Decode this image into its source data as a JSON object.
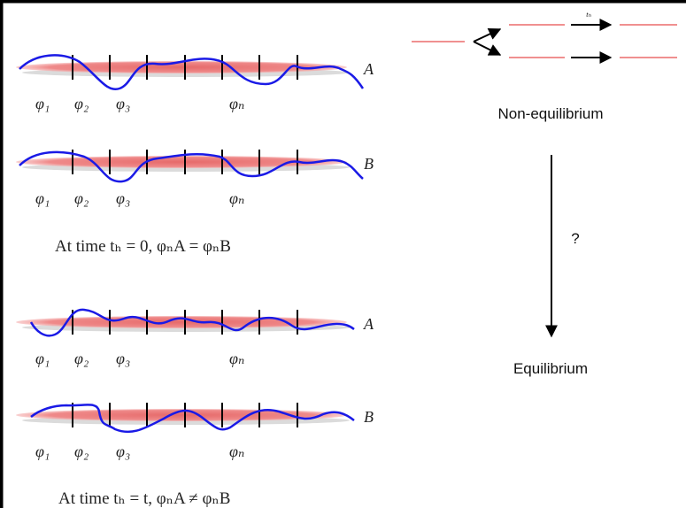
{
  "strands": [
    {
      "label": "A",
      "phis": [
        "φ₁",
        "φ₂",
        "φ₃",
        "φₙ"
      ]
    },
    {
      "label": "B",
      "phis": [
        "φ₁",
        "φ₂",
        "φ₃",
        "φₙ"
      ]
    },
    {
      "label": "A",
      "phis": [
        "φ₁",
        "φ₂",
        "φ₃",
        "φₙ"
      ]
    },
    {
      "label": "B",
      "phis": [
        "φ₁",
        "φ₂",
        "φ₃",
        "φₙ"
      ]
    }
  ],
  "captions": [
    "At time tₕ = 0,   φₙA = φₙB",
    "At time tₕ = t,  φₙA ≠ φₙB"
  ],
  "right": {
    "arrow_label": "tₕ",
    "upper": "Non-equilibrium",
    "question": "?",
    "lower": "Equilibrium"
  }
}
